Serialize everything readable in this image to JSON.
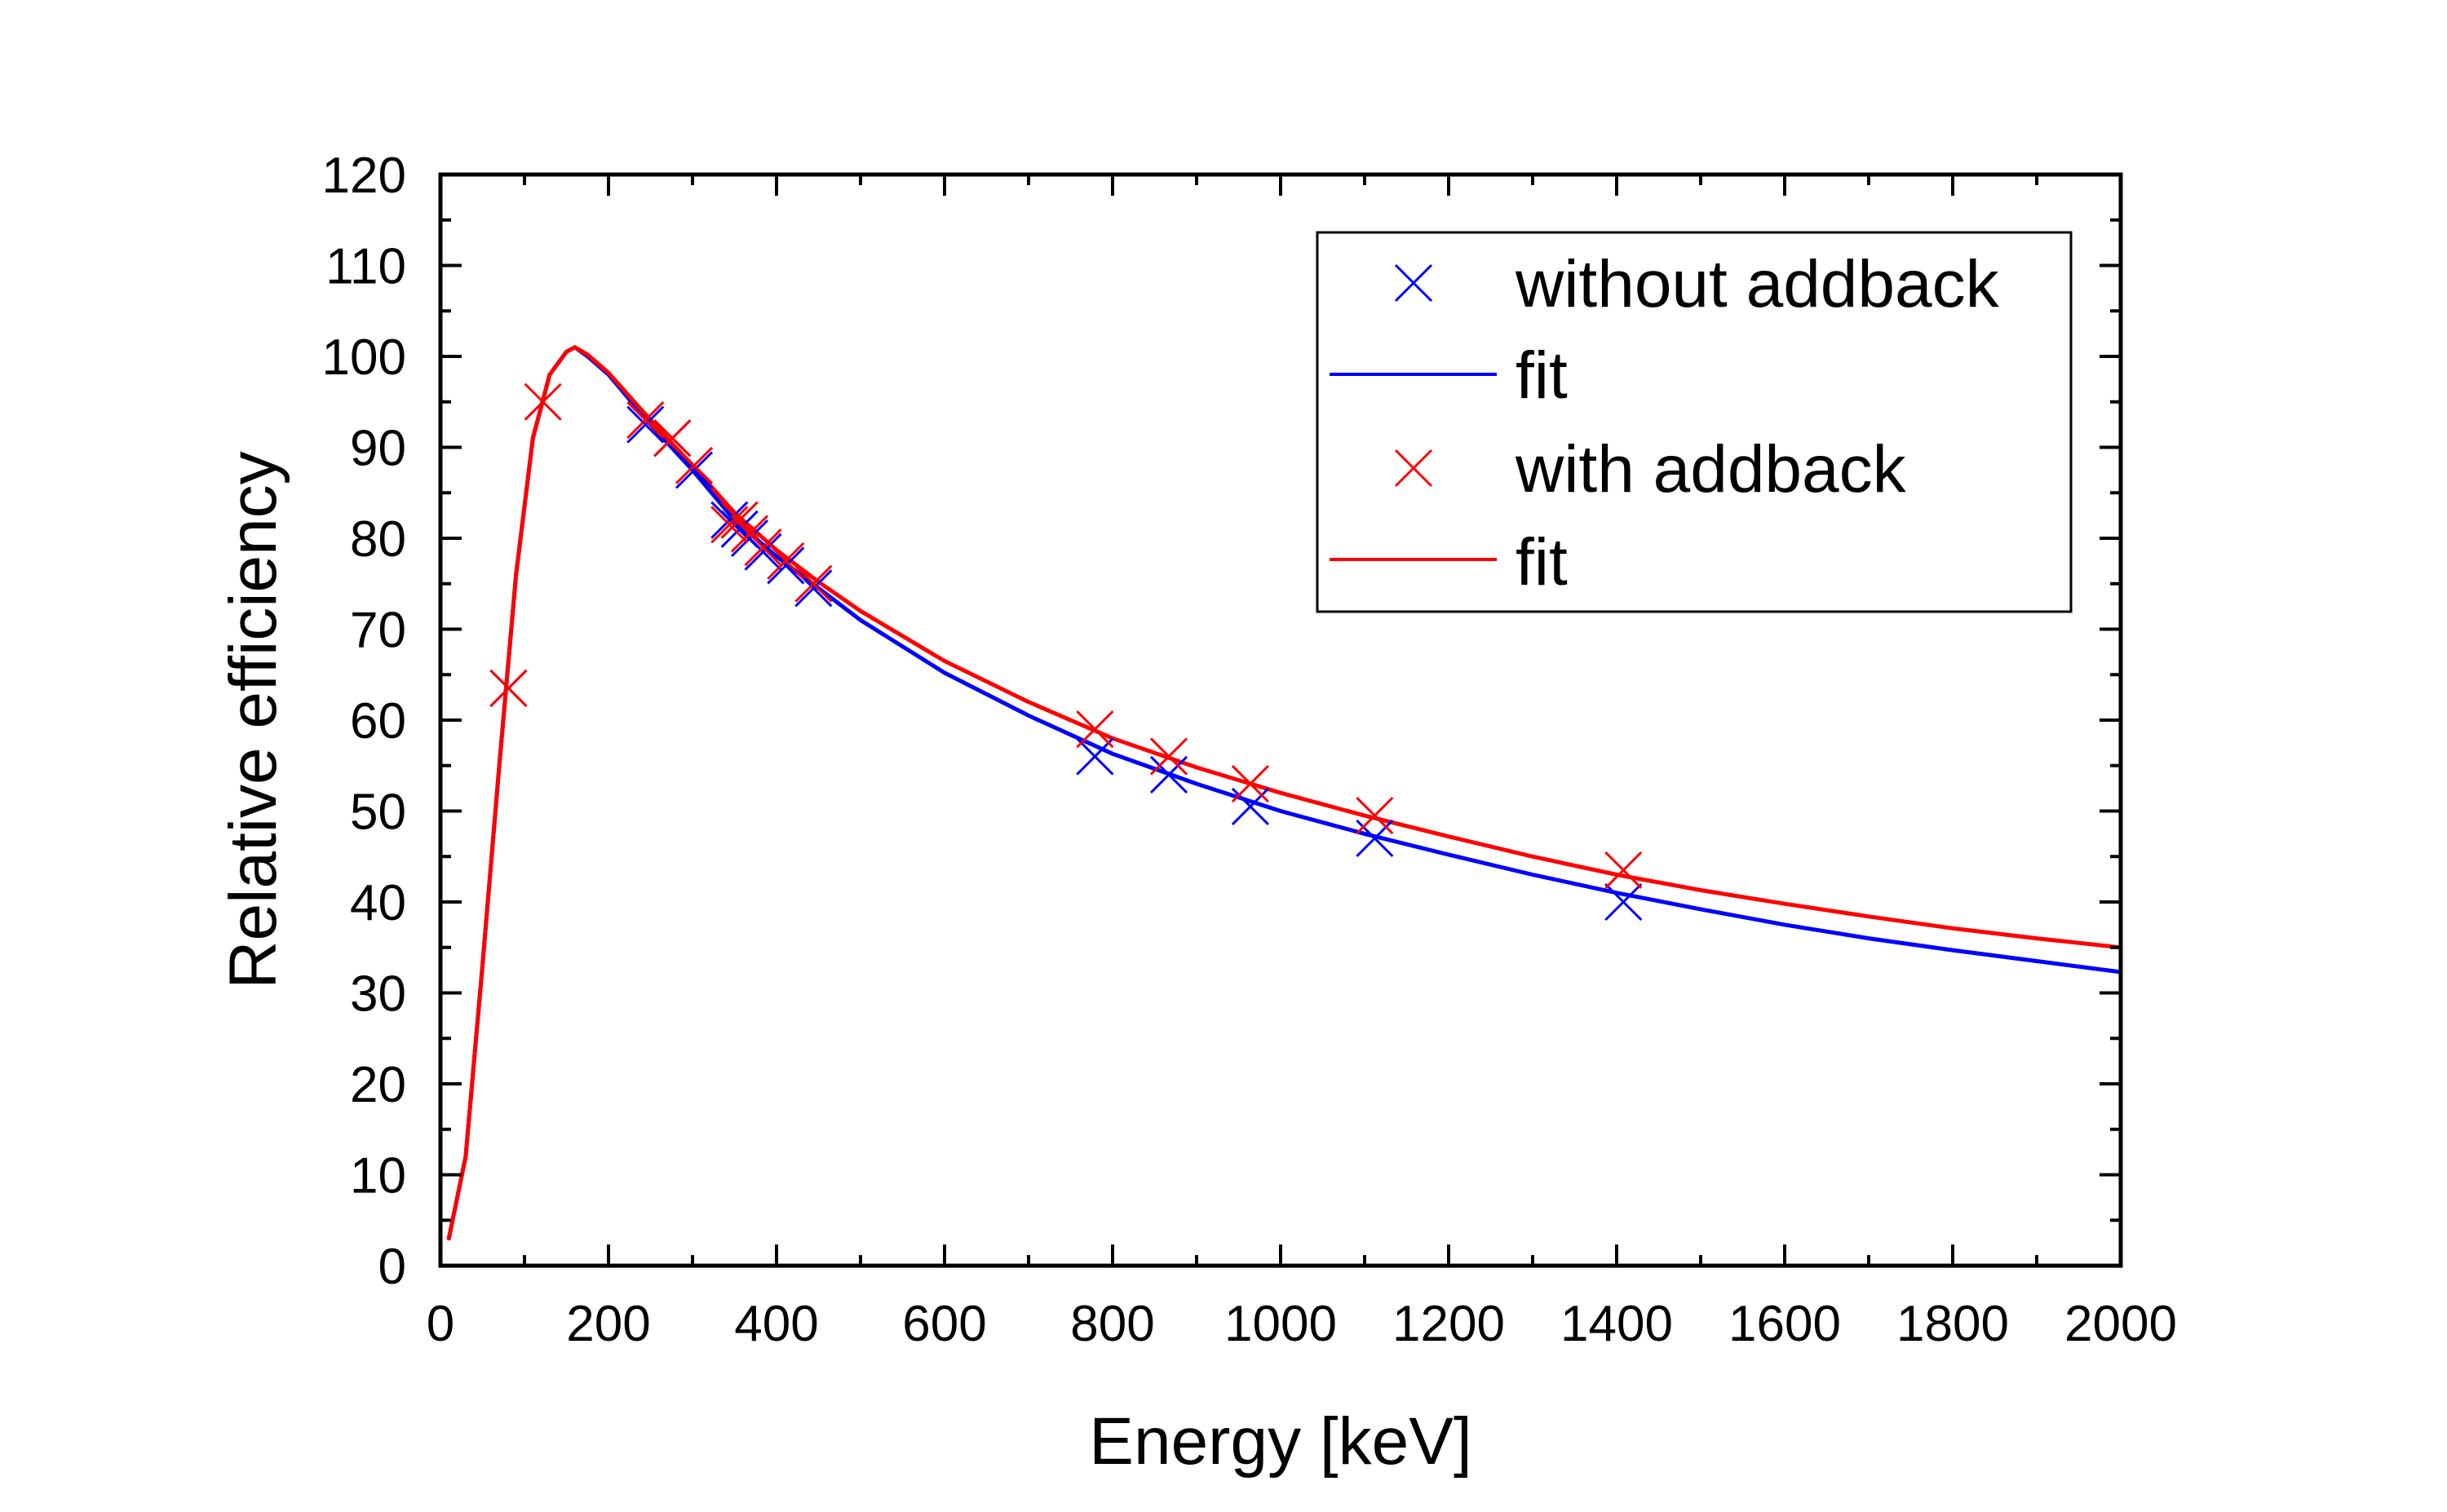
{
  "chart_data": {
    "type": "scatter",
    "title": "",
    "xlabel": "Energy [keV]",
    "ylabel": "Relative efficiency",
    "xlim": [
      0,
      2000
    ],
    "ylim": [
      0,
      120
    ],
    "xticks": [
      0,
      200,
      400,
      600,
      800,
      1000,
      1200,
      1400,
      1600,
      1800,
      2000
    ],
    "yticks": [
      0,
      10,
      20,
      30,
      40,
      50,
      60,
      70,
      80,
      90,
      100,
      110,
      120
    ],
    "grid": false,
    "legend_position": "top-right",
    "colors": {
      "without": "#0000ff",
      "with": "#ff0000",
      "axis": "#000000"
    },
    "series": [
      {
        "name": "without addback",
        "kind": "points",
        "marker": "x",
        "color": "#0000ff",
        "x": [
          81,
          244,
          276,
          302,
          344,
          356,
          368,
          384,
          411,
          444,
          779,
          867,
          964,
          1112,
          1408
        ],
        "y": [
          63.5,
          92.5,
          91.0,
          87.5,
          82.0,
          81.0,
          80.0,
          78.5,
          77.0,
          74.5,
          56.0,
          54.0,
          50.5,
          47.0,
          40.0
        ]
      },
      {
        "name": "fit",
        "kind": "line",
        "color": "#0000ff",
        "x": [
          10,
          30,
          50,
          70,
          90,
          110,
          130,
          150,
          160,
          175,
          200,
          250,
          300,
          350,
          400,
          450,
          500,
          600,
          700,
          800,
          900,
          1000,
          1100,
          1200,
          1300,
          1400,
          1500,
          1600,
          1700,
          1800,
          1900,
          2000
        ],
        "y": [
          3,
          12,
          33,
          55,
          76,
          91,
          98,
          100.5,
          101,
          100,
          98,
          92.5,
          87.5,
          82,
          78,
          74.5,
          71,
          65.2,
          60.5,
          56.3,
          53.0,
          50.0,
          47.5,
          45.2,
          43.0,
          41.0,
          39.2,
          37.5,
          36.0,
          34.7,
          33.5,
          32.3
        ]
      },
      {
        "name": "with addback",
        "kind": "points",
        "marker": "x",
        "color": "#ff0000",
        "x": [
          81,
          122,
          244,
          276,
          302,
          344,
          356,
          368,
          384,
          411,
          444,
          779,
          867,
          964,
          1112,
          1408
        ],
        "y": [
          63.5,
          95.0,
          93.0,
          91.0,
          88.0,
          81.5,
          82.0,
          80.5,
          79.0,
          77.5,
          75.0,
          59.0,
          56.0,
          53.0,
          49.5,
          43.5
        ]
      },
      {
        "name": "fit",
        "kind": "line",
        "color": "#ff0000",
        "x": [
          10,
          30,
          50,
          70,
          90,
          110,
          130,
          150,
          160,
          175,
          200,
          250,
          300,
          350,
          400,
          450,
          500,
          600,
          700,
          800,
          900,
          1000,
          1100,
          1200,
          1300,
          1400,
          1500,
          1600,
          1700,
          1800,
          1900,
          2000
        ],
        "y": [
          3,
          12,
          33,
          55,
          76,
          91,
          98,
          100.5,
          101,
          100.2,
          98.2,
          93,
          88,
          82.8,
          78.7,
          75.2,
          72,
          66.5,
          62.0,
          58.0,
          54.8,
          52.0,
          49.5,
          47.2,
          45.0,
          43.0,
          41.3,
          39.8,
          38.4,
          37.1,
          36.0,
          35.0
        ]
      }
    ]
  }
}
